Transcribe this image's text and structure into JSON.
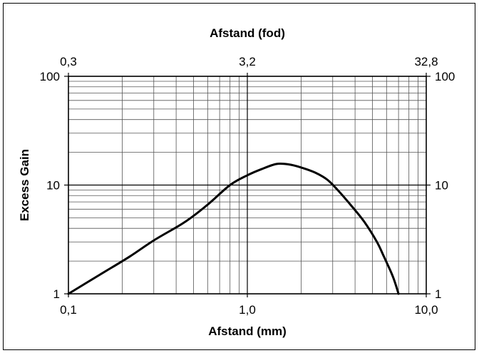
{
  "chart_data": {
    "type": "line",
    "title": "",
    "xlabel": "Afstand (mm)",
    "x2label": "Afstand (fod)",
    "ylabel": "Excess Gain",
    "x_scale": "log",
    "y_scale": "log",
    "xlim": [
      0.1,
      10.0
    ],
    "ylim": [
      1,
      100
    ],
    "x_ticks": [
      {
        "value": 0.1,
        "label": "0,1"
      },
      {
        "value": 1.0,
        "label": "1,0"
      },
      {
        "value": 10.0,
        "label": "10,0"
      }
    ],
    "x2_ticks": [
      {
        "value": 0.3,
        "label": "0,3"
      },
      {
        "value": 3.2,
        "label": "3,2"
      },
      {
        "value": 32.8,
        "label": "32,8"
      }
    ],
    "y_ticks": [
      {
        "value": 1,
        "label": "1"
      },
      {
        "value": 10,
        "label": "10"
      },
      {
        "value": 100,
        "label": "100"
      }
    ],
    "grid": true,
    "legend": "none",
    "line_color": "#000000",
    "series": [
      {
        "x": [
          0.1,
          0.15,
          0.22,
          0.3,
          0.45,
          0.6,
          0.8,
          1.0,
          1.2,
          1.45,
          1.7,
          2.0,
          2.4,
          2.8,
          3.2,
          3.8,
          4.5,
          5.3,
          5.8,
          6.5,
          7.0
        ],
        "y": [
          1.0,
          1.5,
          2.2,
          3.1,
          4.6,
          6.6,
          10.0,
          12.3,
          14.0,
          15.6,
          15.5,
          14.5,
          13.0,
          11.2,
          9.0,
          6.5,
          4.6,
          3.0,
          2.2,
          1.45,
          1.0
        ]
      }
    ]
  }
}
